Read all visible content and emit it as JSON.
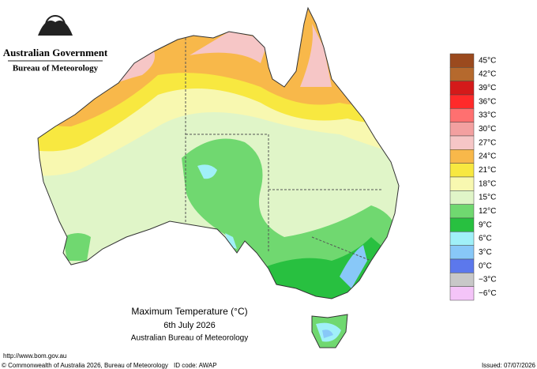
{
  "header": {
    "government": "Australian Government",
    "agency": "Bureau of Meteorology"
  },
  "map": {
    "title": "Maximum Temperature (°C)",
    "date": "6th July 2026",
    "source": "Australian Bureau of Meteorology"
  },
  "legend": {
    "items": [
      {
        "label": "45°C",
        "color": "#9b4a1e"
      },
      {
        "label": "42°C",
        "color": "#b5692d"
      },
      {
        "label": "39°C",
        "color": "#d41a1a"
      },
      {
        "label": "36°C",
        "color": "#ff2a2a"
      },
      {
        "label": "33°C",
        "color": "#ff7070"
      },
      {
        "label": "30°C",
        "color": "#f3a0a0"
      },
      {
        "label": "27°C",
        "color": "#f6c6c6"
      },
      {
        "label": "24°C",
        "color": "#f8b84a"
      },
      {
        "label": "21°C",
        "color": "#f8e840"
      },
      {
        "label": "18°C",
        "color": "#f8f8b0"
      },
      {
        "label": "15°C",
        "color": "#e0f5c8"
      },
      {
        "label": "12°C",
        "color": "#70d870"
      },
      {
        "label": "9°C",
        "color": "#28c040"
      },
      {
        "label": "6°C",
        "color": "#a0f0f8"
      },
      {
        "label": "3°C",
        "color": "#88c8f8"
      },
      {
        "label": "0°C",
        "color": "#5c78ec"
      },
      {
        "label": "−3°C",
        "color": "#c8c8c8"
      },
      {
        "label": "−6°C",
        "color": "#f4c4f8"
      }
    ]
  },
  "footer": {
    "url": "http://www.bom.gov.au",
    "copyright": "© Commonwealth of Australia 2026, Bureau of Meteorology",
    "id_code": "ID code: AWAP",
    "issued": "Issued: 07/07/2026"
  }
}
